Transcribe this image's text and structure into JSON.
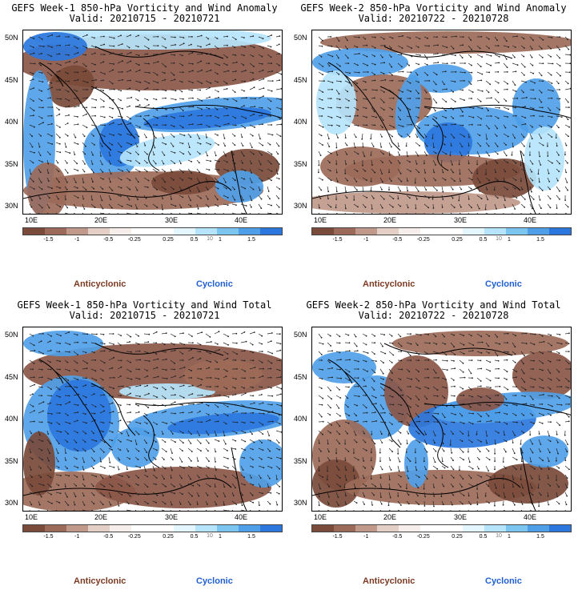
{
  "colors": {
    "anticyclonic_label": "#7b3a22",
    "cyclonic_label": "#1f5fd1",
    "scale": [
      "#7a4a3a",
      "#9c6a58",
      "#c0998a",
      "#e3cfc6",
      "#f6eeea",
      "#ffffff",
      "#ffffff",
      "#e4f6ff",
      "#b5e4fb",
      "#7cc5f1",
      "#4f9fe8",
      "#2b77dd"
    ]
  },
  "common": {
    "lat_labels": [
      "50N",
      "45N",
      "40N",
      "35N",
      "30N"
    ],
    "lon_labels": [
      "10E",
      "20E",
      "30E",
      "40E"
    ],
    "colorbar_ticks": [
      "-1.5",
      "-1",
      "-0.5",
      "-0.25",
      "0.25",
      "0.5",
      "1",
      "1.5"
    ],
    "colorbar_mid": "10",
    "anticyclonic": "Anticyclonic",
    "cyclonic": "Cyclonic"
  },
  "panels": [
    {
      "title": "GEFS Week-1 850-hPa Vorticity and Wind Anomaly",
      "valid": "Valid: 20210715 - 20210721",
      "week": 1,
      "kind": "anomaly"
    },
    {
      "title": "GEFS Week-2 850-hPa Vorticity and Wind Anomaly",
      "valid": "Valid: 20210722 - 20210728",
      "week": 2,
      "kind": "anomaly"
    },
    {
      "title": "GEFS Week-1 850-hPa Vorticity and Wind Total",
      "valid": "Valid: 20210715 - 20210721",
      "week": 1,
      "kind": "total"
    },
    {
      "title": "GEFS Week-2 850-hPa Vorticity and Wind Total",
      "valid": "Valid: 20210722 - 20210728",
      "week": 2,
      "kind": "total"
    }
  ]
}
